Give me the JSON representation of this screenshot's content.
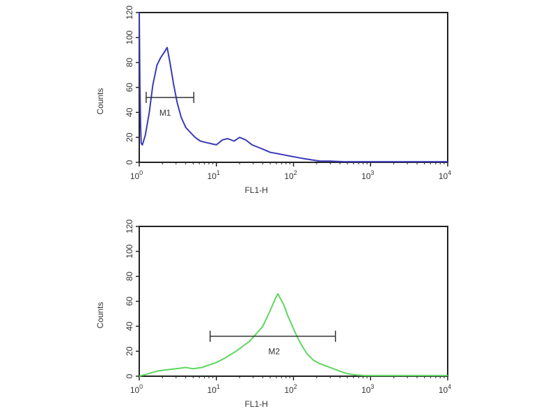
{
  "chart_data": [
    {
      "type": "line",
      "xlabel": "FL1-H",
      "ylabel": "Counts",
      "xscale": "log",
      "xlim": [
        1,
        10000
      ],
      "ylim": [
        0,
        120
      ],
      "xticks": [
        {
          "base": "10",
          "exp": "0",
          "value": 1
        },
        {
          "base": "10",
          "exp": "1",
          "value": 10
        },
        {
          "base": "10",
          "exp": "2",
          "value": 100
        },
        {
          "base": "10",
          "exp": "3",
          "value": 1000
        },
        {
          "base": "10",
          "exp": "4",
          "value": 10000
        }
      ],
      "yticks": [
        "0",
        "20",
        "40",
        "60",
        "80",
        "100",
        "120"
      ],
      "grid": false,
      "color": "#3a3ab8",
      "series": [
        {
          "x": [
            1.0,
            1.02,
            1.04,
            1.06,
            1.1,
            1.2,
            1.35,
            1.5,
            1.7,
            1.9,
            2.1,
            2.3,
            2.5,
            2.8,
            3.1,
            3.5,
            4.0,
            4.6,
            5.3,
            6.2,
            7.2,
            8.5,
            10,
            12,
            14,
            17,
            20,
            24,
            29,
            35,
            42,
            50,
            62,
            75,
            90,
            110,
            135,
            170,
            220,
            300,
            450,
            700,
            1200,
            2000,
            4000,
            10000
          ],
          "y": [
            120,
            60,
            30,
            15,
            14,
            22,
            40,
            62,
            78,
            84,
            88,
            92,
            80,
            62,
            48,
            36,
            28,
            24,
            20,
            17,
            16,
            15,
            14,
            18,
            19,
            17,
            20,
            18,
            14,
            12,
            10,
            8,
            7,
            6,
            5,
            4,
            3,
            2,
            1,
            1,
            0.5,
            0.5,
            0.5,
            0.5,
            0.5,
            0.5
          ]
        }
      ],
      "markers": [
        {
          "label": "M1",
          "x_start": 1.23,
          "x_end": 5.1,
          "y": 52
        }
      ]
    },
    {
      "type": "line",
      "xlabel": "FL1-H",
      "ylabel": "Counts",
      "xscale": "log",
      "xlim": [
        1,
        10000
      ],
      "ylim": [
        0,
        120
      ],
      "xticks": [
        {
          "base": "10",
          "exp": "0",
          "value": 1
        },
        {
          "base": "10",
          "exp": "1",
          "value": 10
        },
        {
          "base": "10",
          "exp": "2",
          "value": 100
        },
        {
          "base": "10",
          "exp": "3",
          "value": 1000
        },
        {
          "base": "10",
          "exp": "4",
          "value": 10000
        }
      ],
      "yticks": [
        "0",
        "20",
        "40",
        "60",
        "80",
        "100",
        "120"
      ],
      "grid": false,
      "color": "#5ed65e",
      "series": [
        {
          "x": [
            1.0,
            1.3,
            1.7,
            2.2,
            3,
            4,
            5,
            6.5,
            8,
            10,
            12.5,
            15,
            18,
            22,
            27,
            33,
            40,
            46,
            52,
            58,
            63,
            68,
            75,
            85,
            100,
            115,
            130,
            150,
            180,
            220,
            270,
            330,
            400,
            500,
            650,
            850,
            1200,
            2000,
            4000,
            10000
          ],
          "y": [
            0,
            2,
            4,
            5,
            6,
            7,
            6,
            7,
            9,
            11,
            14,
            17,
            20,
            24,
            28,
            34,
            40,
            48,
            55,
            62,
            66,
            62,
            57,
            48,
            38,
            30,
            24,
            18,
            13,
            10,
            8,
            6,
            4,
            2,
            1,
            0.5,
            0.5,
            0.5,
            0.5,
            0.5
          ]
        }
      ],
      "markers": [
        {
          "label": "M2",
          "x_start": 8.3,
          "x_end": 350,
          "y": 32
        }
      ]
    }
  ]
}
